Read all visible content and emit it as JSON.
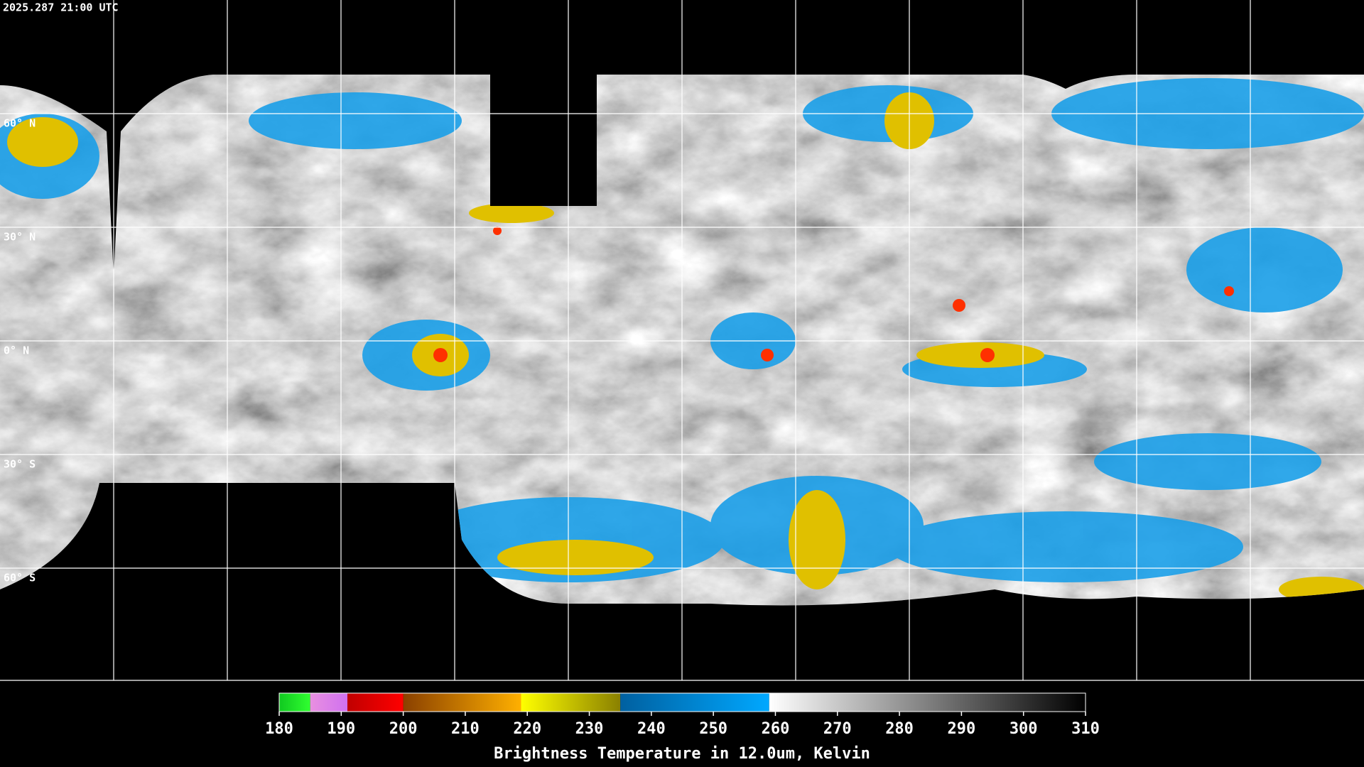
{
  "header": {
    "timestamp": "2025.287 21:00 UTC"
  },
  "map": {
    "lat_labels": [
      "60° N",
      "30° N",
      "0° N",
      "30° S",
      "60° S"
    ]
  },
  "colorbar": {
    "label": "Brightness Temperature in 12.0um, Kelvin",
    "range": [
      180,
      310
    ],
    "ticks": [
      180,
      190,
      200,
      210,
      220,
      230,
      240,
      250,
      260,
      270,
      280,
      290,
      300,
      310
    ],
    "segments": [
      {
        "from": 180,
        "to": 185,
        "colors": [
          "#10c820",
          "#30ff30"
        ]
      },
      {
        "from": 185,
        "to": 191,
        "colors": [
          "#e890e0",
          "#d070f0"
        ]
      },
      {
        "from": 191,
        "to": 200,
        "colors": [
          "#c00000",
          "#ff0000"
        ]
      },
      {
        "from": 200,
        "to": 219,
        "colors": [
          "#8a4000",
          "#ffb000"
        ]
      },
      {
        "from": 219,
        "to": 235,
        "colors": [
          "#ffff00",
          "#8a8000"
        ]
      },
      {
        "from": 235,
        "to": 259,
        "colors": [
          "#0060a0",
          "#00a8ff"
        ]
      },
      {
        "from": 259,
        "to": 310,
        "colors": [
          "#ffffff",
          "#000000"
        ]
      }
    ]
  }
}
